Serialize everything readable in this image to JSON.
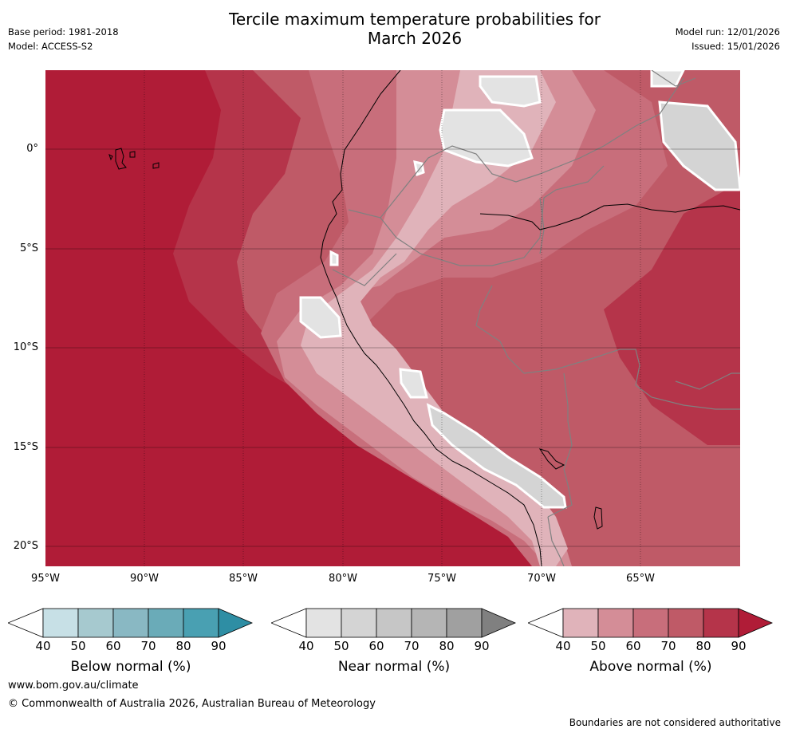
{
  "title_line1": "Tercile maximum temperature probabilities for",
  "title_line2": "March 2026",
  "meta_left": {
    "base_period": "Base period: 1981-2018",
    "model": "Model: ACCESS-S2"
  },
  "meta_right": {
    "model_run": "Model run: 12/01/2026",
    "issued": "Issued: 15/01/2026"
  },
  "map": {
    "lat_labels": [
      "0°",
      "5°S",
      "10°S",
      "15°S",
      "20°S"
    ],
    "lon_labels": [
      "95°W",
      "90°W",
      "85°W",
      "80°W",
      "75°W",
      "70°W",
      "65°W"
    ]
  },
  "colorbars": [
    {
      "label": "Below normal (%)",
      "ticks": [
        "40",
        "50",
        "60",
        "70",
        "80",
        "90"
      ],
      "colors": [
        "#ffffff",
        "#c7e0e6",
        "#a6c9cf",
        "#89b8c3",
        "#6aabb8",
        "#49a0b2",
        "#2e8ea4"
      ]
    },
    {
      "label": "Near normal (%)",
      "ticks": [
        "40",
        "50",
        "60",
        "70",
        "80",
        "90"
      ],
      "colors": [
        "#ffffff",
        "#e3e3e3",
        "#d4d4d4",
        "#c6c6c6",
        "#b5b5b5",
        "#a0a0a0",
        "#808080"
      ]
    },
    {
      "label": "Above normal (%)",
      "ticks": [
        "40",
        "50",
        "60",
        "70",
        "80",
        "90"
      ],
      "colors": [
        "#ffffff",
        "#e0b3ba",
        "#d48d97",
        "#c86e7b",
        "#bf5a67",
        "#b5344a",
        "#b01c37"
      ]
    }
  ],
  "footer": {
    "url": "www.bom.gov.au/climate",
    "copyright": "© Commonwealth of Australia 2026, Australian Bureau of Meteorology",
    "note": "Boundaries are not considered authoritative"
  }
}
